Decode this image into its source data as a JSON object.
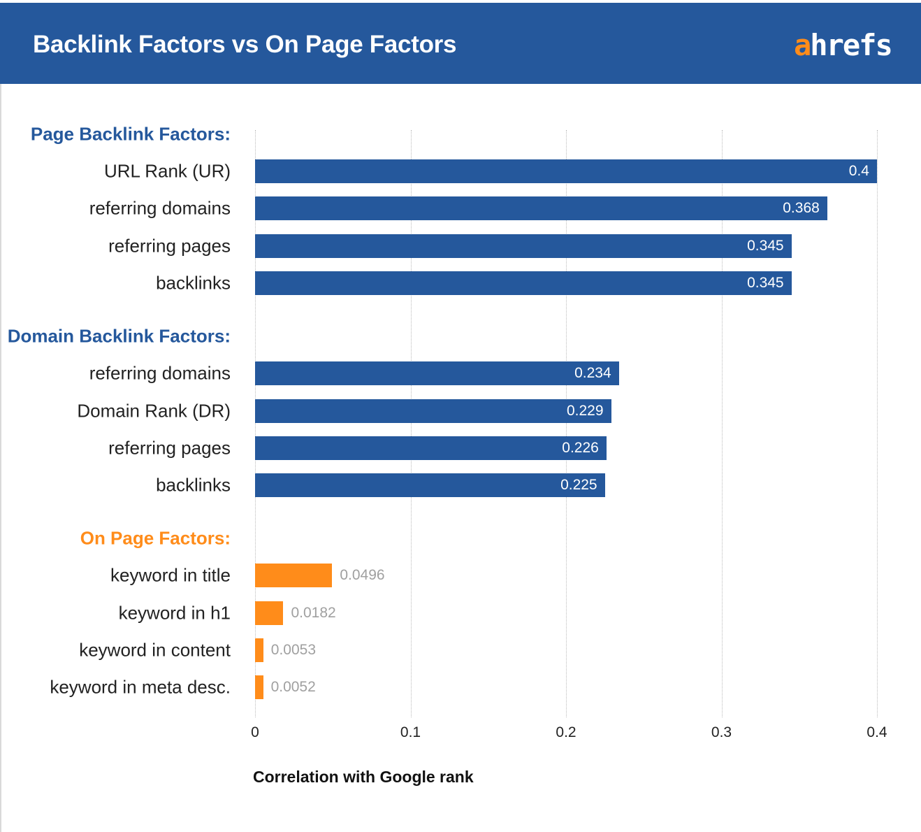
{
  "header": {
    "title": "Backlink Factors vs On Page Factors",
    "logo_a": "a",
    "logo_rest": "hrefs"
  },
  "chart_data": {
    "type": "bar",
    "orientation": "horizontal",
    "title": "Backlink Factors vs On Page Factors",
    "xlabel": "Correlation with Google rank",
    "xlim": [
      0,
      0.4
    ],
    "xticks": [
      "0",
      "0.1",
      "0.2",
      "0.3",
      "0.4"
    ],
    "grid": true,
    "groups": [
      {
        "name": "Page Backlink Factors:",
        "color": "#25589c",
        "label_color": "#25589c",
        "items": [
          {
            "label": "URL Rank (UR)",
            "value": 0.4,
            "value_label": "0.4"
          },
          {
            "label": "referring domains",
            "value": 0.368,
            "value_label": "0.368"
          },
          {
            "label": "referring pages",
            "value": 0.345,
            "value_label": "0.345"
          },
          {
            "label": "backlinks",
            "value": 0.345,
            "value_label": "0.345"
          }
        ]
      },
      {
        "name": "Domain Backlink Factors:",
        "color": "#25589c",
        "label_color": "#25589c",
        "items": [
          {
            "label": "referring domains",
            "value": 0.234,
            "value_label": "0.234"
          },
          {
            "label": "Domain Rank (DR)",
            "value": 0.229,
            "value_label": "0.229"
          },
          {
            "label": "referring pages",
            "value": 0.226,
            "value_label": "0.226"
          },
          {
            "label": "backlinks",
            "value": 0.225,
            "value_label": "0.225"
          }
        ]
      },
      {
        "name": "On Page Factors:",
        "color": "#ff8c1a",
        "label_color": "#ff8c1a",
        "items": [
          {
            "label": "keyword in title",
            "value": 0.0496,
            "value_label": "0.0496"
          },
          {
            "label": "keyword in h1",
            "value": 0.0182,
            "value_label": "0.0182"
          },
          {
            "label": "keyword in content",
            "value": 0.0053,
            "value_label": "0.0053"
          },
          {
            "label": "keyword in meta desc.",
            "value": 0.0052,
            "value_label": "0.0052"
          }
        ]
      }
    ]
  }
}
